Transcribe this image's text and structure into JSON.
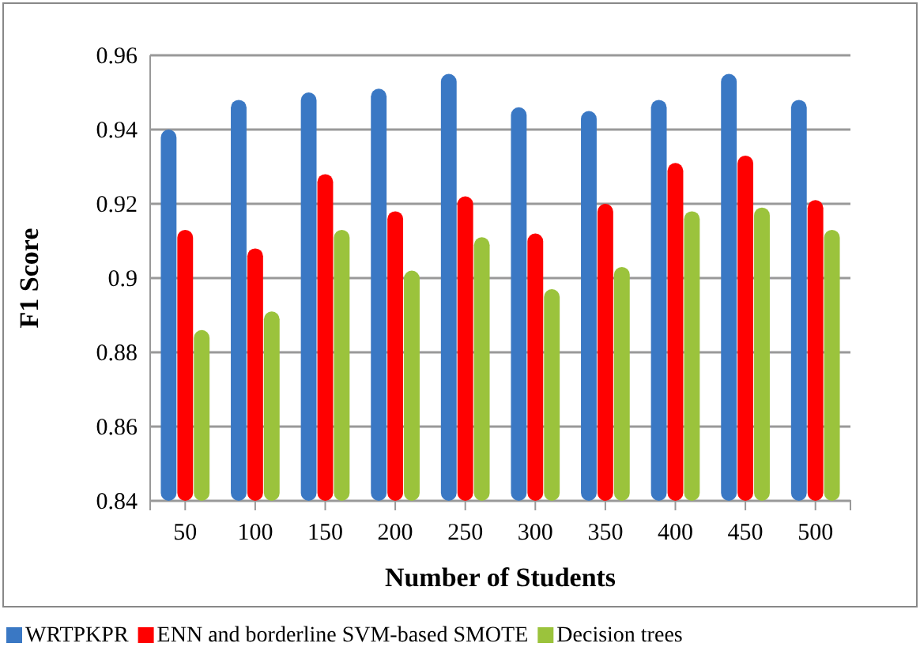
{
  "chart_data": {
    "type": "bar",
    "xlabel": "Number of Students",
    "ylabel": "F1 Score",
    "categories": [
      "50",
      "100",
      "150",
      "200",
      "250",
      "300",
      "350",
      "400",
      "450",
      "500"
    ],
    "series": [
      {
        "name": "WRTPKPR",
        "color": "#3a78c4",
        "values": [
          0.94,
          0.948,
          0.95,
          0.951,
          0.955,
          0.946,
          0.945,
          0.948,
          0.955,
          0.948
        ]
      },
      {
        "name": "ENN and borderline SVM-based SMOTE",
        "color": "#ff0000",
        "values": [
          0.913,
          0.908,
          0.928,
          0.918,
          0.922,
          0.912,
          0.92,
          0.931,
          0.933,
          0.921
        ]
      },
      {
        "name": "Decision trees",
        "color": "#9bc33c",
        "values": [
          0.886,
          0.891,
          0.913,
          0.902,
          0.911,
          0.897,
          0.903,
          0.918,
          0.919,
          0.913
        ]
      }
    ],
    "ylim": [
      0.84,
      0.96
    ],
    "yticks": [
      0.84,
      0.86,
      0.88,
      0.9,
      0.92,
      0.94,
      0.96
    ],
    "grid": "y",
    "legend": "bottom"
  }
}
